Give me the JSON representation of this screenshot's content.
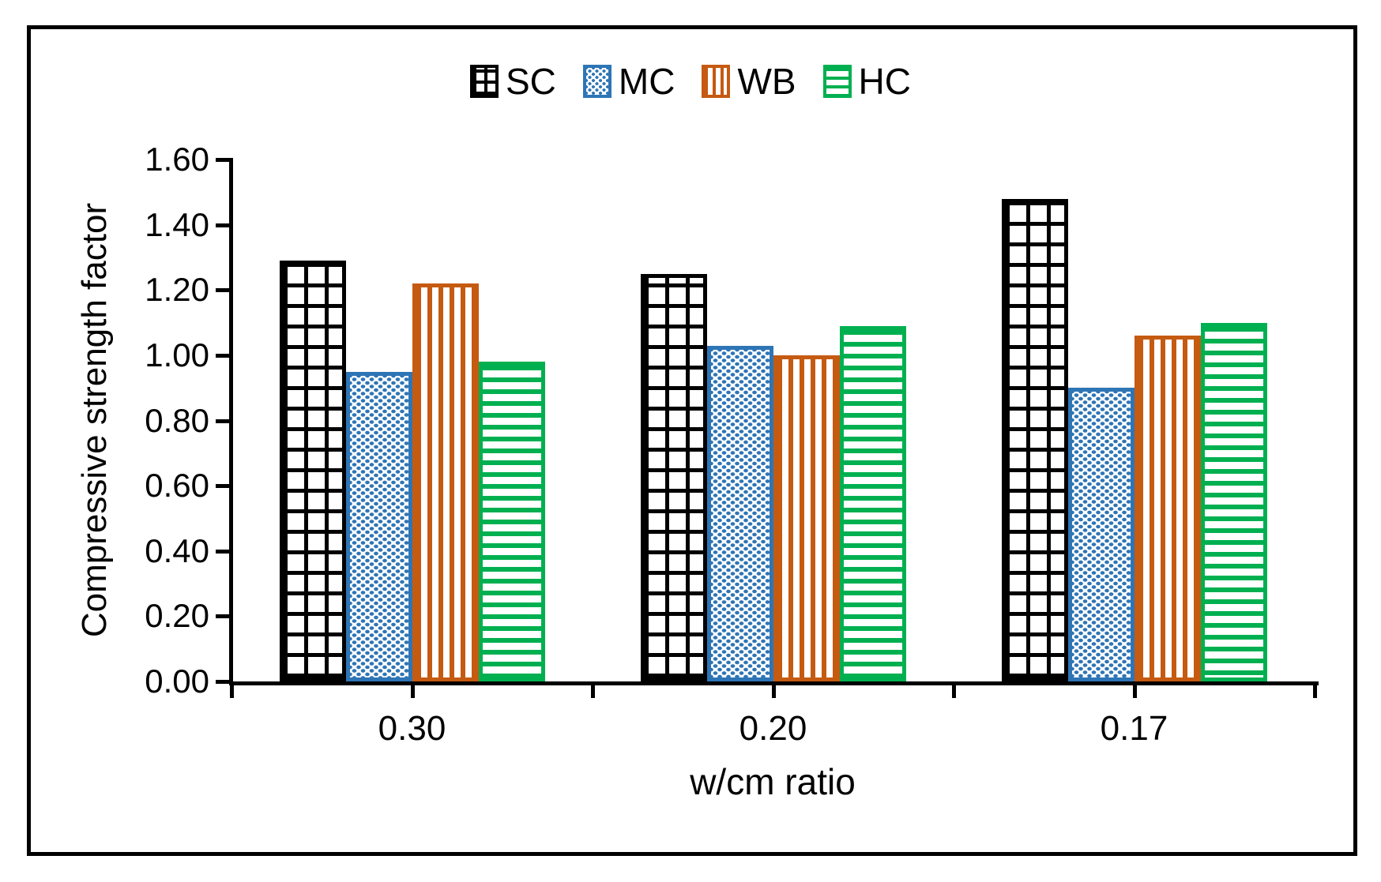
{
  "figure": {
    "background": "#ffffff",
    "border_color": "#000000",
    "text_color": "#000000"
  },
  "chart_data": {
    "type": "bar",
    "title": "",
    "xlabel": "w/cm ratio",
    "ylabel": "Compressive strength factor",
    "categories": [
      "0.30",
      "0.20",
      "0.17"
    ],
    "series": [
      {
        "name": "SC",
        "color": "#000000",
        "pattern": "grid",
        "values": [
          1.29,
          1.25,
          1.48
        ]
      },
      {
        "name": "MC",
        "color": "#2E75B6",
        "pattern": "dots",
        "values": [
          0.95,
          1.03,
          0.9
        ]
      },
      {
        "name": "WB",
        "color": "#C55A11",
        "pattern": "vlines",
        "values": [
          1.22,
          1.0,
          1.06
        ]
      },
      {
        "name": "HC",
        "color": "#00B050",
        "pattern": "hlines",
        "values": [
          0.98,
          1.09,
          1.1
        ]
      }
    ],
    "ylim": [
      0,
      1.6
    ],
    "ytick_step": 0.2,
    "yticks": [
      "0.00",
      "0.20",
      "0.40",
      "0.60",
      "0.80",
      "1.00",
      "1.20",
      "1.40",
      "1.60"
    ],
    "grid": "off",
    "legend_position": "top-center",
    "bar_fill": "white-with-pattern"
  }
}
